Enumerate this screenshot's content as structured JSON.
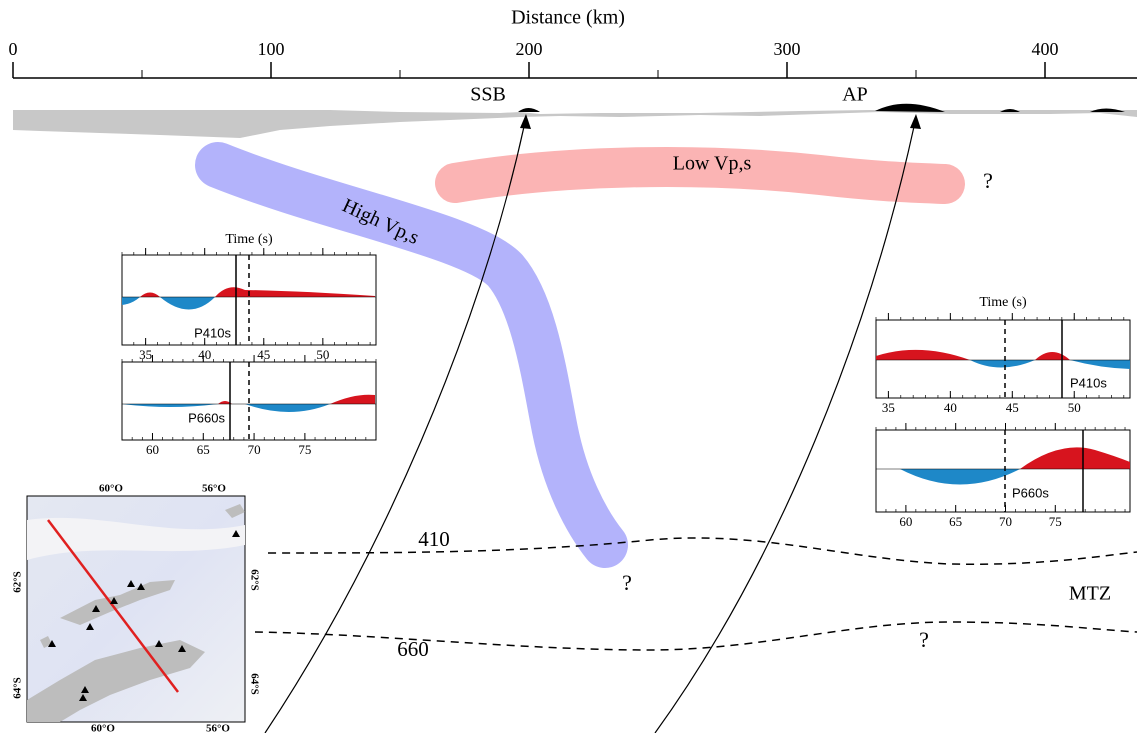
{
  "distance_axis": {
    "title": "Distance (km)",
    "ticks": [
      0,
      100,
      200,
      300,
      400
    ],
    "range": [
      0,
      435
    ]
  },
  "labels": {
    "ssb": "SSB",
    "ap": "AP",
    "high": "High Vp,s",
    "low": "Low Vp,s",
    "q_low": "?",
    "q_high": "?",
    "q_660": "?",
    "d410": "410",
    "d660": "660",
    "mtz": "MTZ"
  },
  "insets": [
    {
      "title": "Time (s)",
      "p410": {
        "phase": "P410s",
        "ticks": [
          35,
          40,
          45,
          50
        ],
        "range": [
          33,
          54.5
        ]
      },
      "p660": {
        "phase": "P660s",
        "ticks": [
          60,
          65,
          70,
          75
        ],
        "range": [
          57,
          82
        ]
      }
    },
    {
      "title": "Time (s)",
      "p410": {
        "phase": "P410s",
        "ticks": [
          35,
          40,
          45,
          50
        ],
        "range": [
          34,
          54.5
        ]
      },
      "p660": {
        "phase": "P660s",
        "ticks": [
          60,
          65,
          70,
          75
        ],
        "range": [
          57,
          82.5
        ]
      }
    }
  ],
  "map": {
    "lon_labels": [
      "60°O",
      "56°O"
    ],
    "lat_labels": [
      "62°S",
      "64°S"
    ]
  }
}
